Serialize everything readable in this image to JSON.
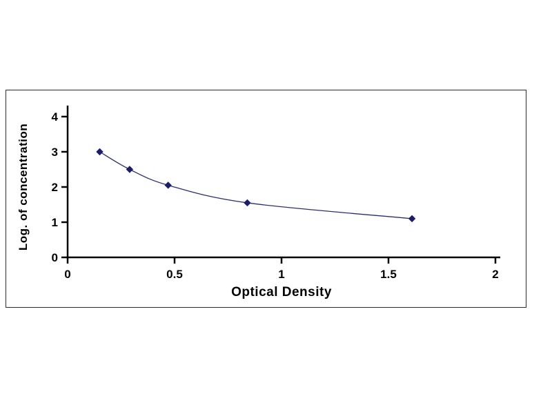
{
  "chart_data": {
    "type": "line",
    "title": "",
    "xlabel": "Optical Density",
    "ylabel": "Log. of concentration",
    "x": [
      0.15,
      0.29,
      0.47,
      0.84,
      1.61
    ],
    "y": [
      3.0,
      2.5,
      2.05,
      1.55,
      1.1
    ],
    "xlim": [
      0,
      2
    ],
    "ylim": [
      0,
      4
    ],
    "xticks": [
      0,
      0.5,
      1,
      1.5,
      2
    ],
    "xtick_labels": [
      "0",
      "0.5",
      "1",
      "1.5",
      "2"
    ],
    "yticks": [
      0,
      1,
      2,
      3,
      4
    ],
    "ytick_labels": [
      "0",
      "1",
      "2",
      "3",
      "4"
    ],
    "grid": false,
    "legend": null,
    "line_color": "#2a2a7d",
    "marker": "diamond",
    "marker_color": "#1c1c6e",
    "axis_color": "#000000"
  }
}
